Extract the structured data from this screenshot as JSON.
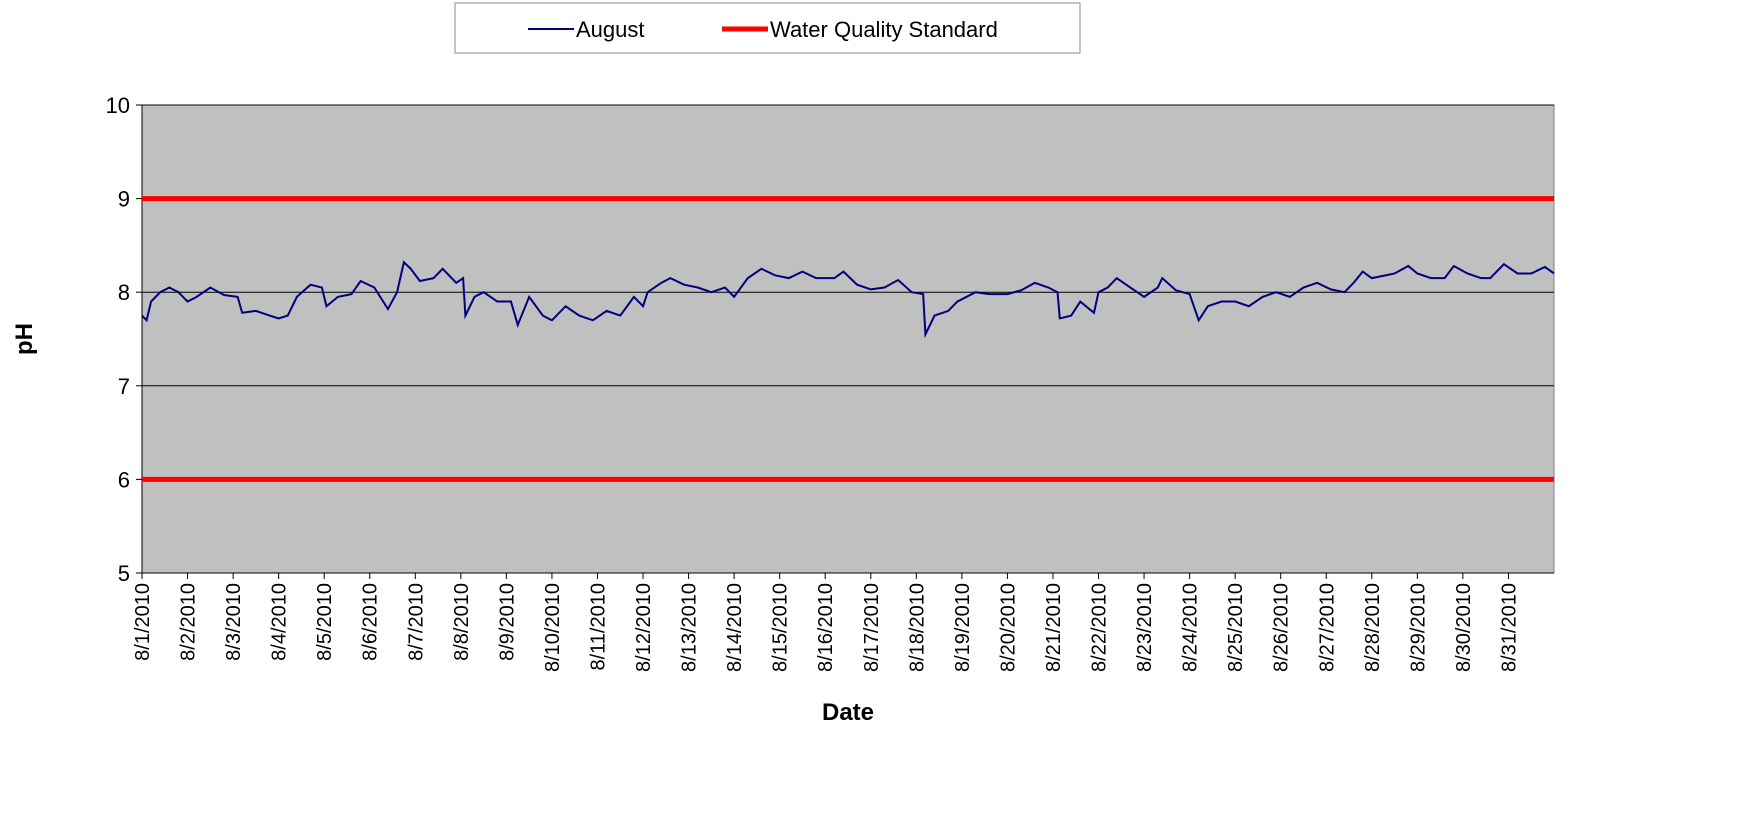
{
  "chart_data": {
    "type": "line",
    "xlabel": "Date",
    "ylabel": "pH",
    "xlim": [
      0,
      31
    ],
    "ylim": [
      5,
      10
    ],
    "yticks": [
      5,
      6,
      7,
      8,
      9,
      10
    ],
    "xticks": [
      {
        "value": 0,
        "label": "8/1/2010"
      },
      {
        "value": 1,
        "label": "8/2/2010"
      },
      {
        "value": 2,
        "label": "8/3/2010"
      },
      {
        "value": 3,
        "label": "8/4/2010"
      },
      {
        "value": 4,
        "label": "8/5/2010"
      },
      {
        "value": 5,
        "label": "8/6/2010"
      },
      {
        "value": 6,
        "label": "8/7/2010"
      },
      {
        "value": 7,
        "label": "8/8/2010"
      },
      {
        "value": 8,
        "label": "8/9/2010"
      },
      {
        "value": 9,
        "label": "8/10/2010"
      },
      {
        "value": 10,
        "label": "8/11/2010"
      },
      {
        "value": 11,
        "label": "8/12/2010"
      },
      {
        "value": 12,
        "label": "8/13/2010"
      },
      {
        "value": 13,
        "label": "8/14/2010"
      },
      {
        "value": 14,
        "label": "8/15/2010"
      },
      {
        "value": 15,
        "label": "8/16/2010"
      },
      {
        "value": 16,
        "label": "8/17/2010"
      },
      {
        "value": 17,
        "label": "8/18/2010"
      },
      {
        "value": 18,
        "label": "8/19/2010"
      },
      {
        "value": 19,
        "label": "8/20/2010"
      },
      {
        "value": 20,
        "label": "8/21/2010"
      },
      {
        "value": 21,
        "label": "8/22/2010"
      },
      {
        "value": 22,
        "label": "8/23/2010"
      },
      {
        "value": 23,
        "label": "8/24/2010"
      },
      {
        "value": 24,
        "label": "8/25/2010"
      },
      {
        "value": 25,
        "label": "8/26/2010"
      },
      {
        "value": 26,
        "label": "8/27/2010"
      },
      {
        "value": 27,
        "label": "8/28/2010"
      },
      {
        "value": 28,
        "label": "8/29/2010"
      },
      {
        "value": 29,
        "label": "8/30/2010"
      },
      {
        "value": 30,
        "label": "8/31/2010"
      }
    ],
    "grid": true,
    "legend": "top",
    "series": [
      {
        "name": "August",
        "color": "#000080",
        "x": [
          0,
          0.1,
          0.2,
          0.4,
          0.6,
          0.8,
          1.0,
          1.2,
          1.5,
          1.8,
          2.1,
          2.2,
          2.5,
          2.8,
          3.0,
          3.2,
          3.4,
          3.7,
          3.95,
          4.05,
          4.3,
          4.6,
          4.8,
          5.1,
          5.4,
          5.6,
          5.75,
          5.9,
          6.1,
          6.4,
          6.6,
          6.9,
          7.05,
          7.1,
          7.3,
          7.5,
          7.8,
          8.1,
          8.25,
          8.5,
          8.8,
          9.0,
          9.3,
          9.6,
          9.9,
          10.2,
          10.5,
          10.8,
          11.0,
          11.1,
          11.4,
          11.6,
          11.9,
          12.2,
          12.5,
          12.8,
          13.0,
          13.3,
          13.6,
          13.9,
          14.2,
          14.5,
          14.8,
          15.2,
          15.4,
          15.7,
          16.0,
          16.3,
          16.6,
          16.9,
          17.15,
          17.2,
          17.4,
          17.7,
          17.9,
          18.3,
          18.6,
          19.0,
          19.3,
          19.6,
          19.9,
          20.1,
          20.15,
          20.4,
          20.6,
          20.9,
          21.0,
          21.2,
          21.4,
          21.7,
          22.0,
          22.3,
          22.4,
          22.7,
          23.0,
          23.2,
          23.4,
          23.7,
          24.0,
          24.3,
          24.6,
          24.9,
          25.2,
          25.5,
          25.8,
          26.1,
          26.4,
          26.6,
          26.8,
          27.0,
          27.3,
          27.5,
          27.8,
          28.0,
          28.3,
          28.6,
          28.8,
          29.1,
          29.4,
          29.6,
          29.9,
          30.2,
          30.5,
          30.8,
          31.0
        ],
        "values": [
          7.75,
          7.7,
          7.9,
          8.0,
          8.05,
          8.0,
          7.9,
          7.95,
          8.05,
          7.97,
          7.95,
          7.78,
          7.8,
          7.75,
          7.72,
          7.75,
          7.95,
          8.08,
          8.05,
          7.85,
          7.95,
          7.98,
          8.12,
          8.05,
          7.82,
          8.0,
          8.32,
          8.25,
          8.12,
          8.15,
          8.25,
          8.1,
          8.15,
          7.75,
          7.95,
          8.0,
          7.9,
          7.9,
          7.65,
          7.95,
          7.75,
          7.7,
          7.85,
          7.75,
          7.7,
          7.8,
          7.75,
          7.95,
          7.85,
          8.0,
          8.1,
          8.15,
          8.08,
          8.05,
          8.0,
          8.05,
          7.95,
          8.15,
          8.25,
          8.18,
          8.15,
          8.22,
          8.15,
          8.15,
          8.22,
          8.08,
          8.03,
          8.05,
          8.13,
          8.0,
          7.98,
          7.55,
          7.75,
          7.8,
          7.9,
          8.0,
          7.98,
          7.98,
          8.02,
          8.1,
          8.05,
          8.0,
          7.72,
          7.75,
          7.9,
          7.78,
          8.0,
          8.05,
          8.15,
          8.05,
          7.95,
          8.05,
          8.15,
          8.02,
          7.98,
          7.7,
          7.85,
          7.9,
          7.9,
          7.85,
          7.95,
          8.0,
          7.95,
          8.05,
          8.1,
          8.03,
          8.0,
          8.1,
          8.22,
          8.15,
          8.18,
          8.2,
          8.28,
          8.2,
          8.15,
          8.15,
          8.28,
          8.2,
          8.15,
          8.15,
          8.3,
          8.2,
          8.2,
          8.27,
          8.2
        ]
      },
      {
        "name": "Water Quality Standard",
        "color": "#ff0000",
        "kind": "hline",
        "values": [
          9,
          6
        ]
      }
    ]
  }
}
